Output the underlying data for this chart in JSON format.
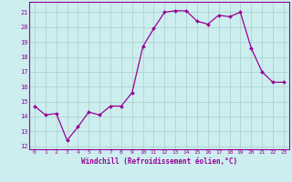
{
  "x": [
    0,
    1,
    2,
    3,
    4,
    5,
    6,
    7,
    8,
    9,
    10,
    11,
    12,
    13,
    14,
    15,
    16,
    17,
    18,
    19,
    20,
    21,
    22,
    23
  ],
  "y": [
    14.7,
    14.1,
    14.2,
    12.4,
    13.3,
    14.3,
    14.1,
    14.7,
    14.7,
    15.6,
    18.7,
    19.9,
    21.0,
    21.1,
    21.1,
    20.4,
    20.2,
    20.8,
    20.7,
    21.0,
    18.6,
    17.0,
    16.3,
    16.3
  ],
  "xlabel": "Windchill (Refroidissement éolien,°C)",
  "xlim": [
    -0.5,
    23.5
  ],
  "ylim": [
    11.8,
    21.7
  ],
  "yticks": [
    12,
    13,
    14,
    15,
    16,
    17,
    18,
    19,
    20,
    21
  ],
  "xticks": [
    0,
    1,
    2,
    3,
    4,
    5,
    6,
    7,
    8,
    9,
    10,
    11,
    12,
    13,
    14,
    15,
    16,
    17,
    18,
    19,
    20,
    21,
    22,
    23
  ],
  "line_color": "#990099",
  "marker_color": "#990099",
  "bg_color": "#cceeee",
  "grid_color": "#aacccc",
  "border_color": "#990099",
  "tick_color": "#990099",
  "xlabel_color": "#990099"
}
